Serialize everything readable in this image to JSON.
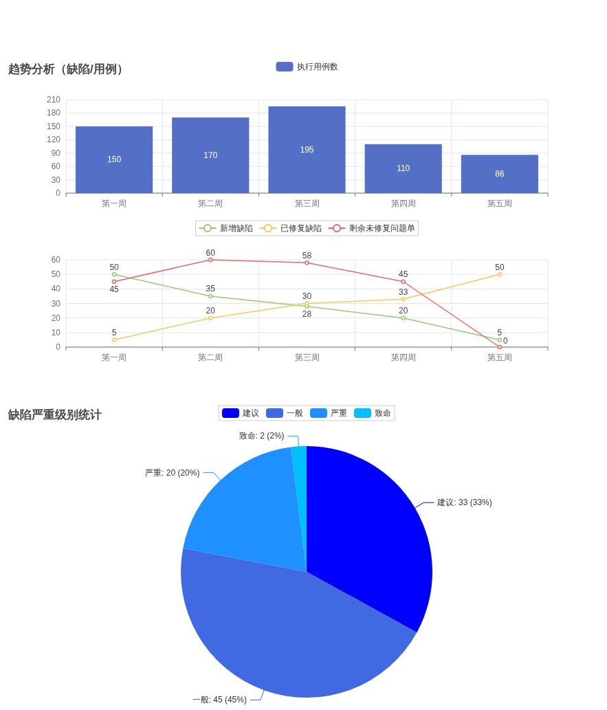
{
  "chart_data": [
    {
      "type": "bar",
      "title": "趋势分析（缺陷/用例）",
      "categories": [
        "第一周",
        "第二周",
        "第三周",
        "第四周",
        "第五周"
      ],
      "series": [
        {
          "name": "执行用例数",
          "color": "#5470c6",
          "values": [
            150,
            170,
            195,
            110,
            86
          ]
        }
      ],
      "ylim": [
        0,
        210
      ],
      "yticks": [
        0,
        30,
        60,
        90,
        120,
        150,
        180,
        210
      ],
      "grid": true,
      "legend": "top",
      "data_labels": true
    },
    {
      "type": "line",
      "categories": [
        "第一周",
        "第二周",
        "第三周",
        "第四周",
        "第五周"
      ],
      "series": [
        {
          "name": "新增缺陷",
          "color": "#91cc75",
          "values": [
            50,
            35,
            28,
            20,
            5
          ]
        },
        {
          "name": "已修复缺陷",
          "color": "#fac858",
          "values": [
            5,
            20,
            30,
            33,
            50
          ]
        },
        {
          "name": "剩余未修复问题单",
          "color": "#ee6666",
          "values": [
            45,
            60,
            58,
            45,
            0
          ]
        }
      ],
      "ylim": [
        0,
        60
      ],
      "yticks": [
        0,
        10,
        20,
        30,
        40,
        50,
        60
      ],
      "grid": true,
      "legend": "top",
      "marker": "circle",
      "line_style": "solid",
      "data_labels": true
    },
    {
      "type": "pie",
      "title": "缺陷严重级别统计",
      "categories": [
        "建议",
        "一般",
        "严重",
        "致命"
      ],
      "values": [
        33,
        45,
        20,
        2
      ],
      "colors": [
        "#0000ff",
        "#4169e1",
        "#1e90ff",
        "#00bfff"
      ],
      "value_labels": [
        "建议: 33 (33%)",
        "一般: 45 (45%)",
        "严重: 20 (20%)",
        "致命: 2 (2%)"
      ],
      "legend": "top"
    }
  ]
}
